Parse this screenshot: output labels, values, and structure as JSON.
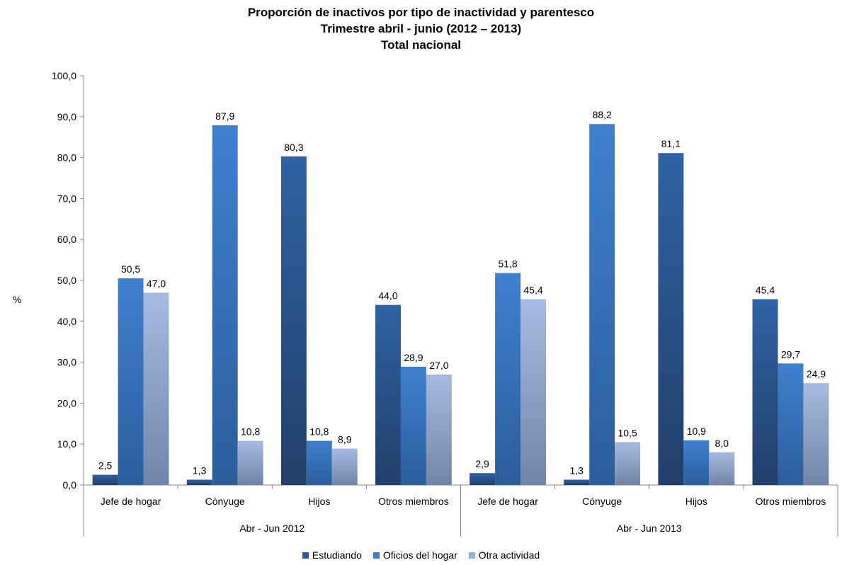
{
  "chart_data": {
    "type": "bar",
    "title_lines": [
      "Proporción de inactivos por tipo de inactividad y parentesco",
      "Trimestre abril - junio (2012 – 2013)",
      "Total nacional"
    ],
    "ylabel": "%",
    "ylim": [
      0,
      100
    ],
    "yticks": [
      "0,0",
      "10,0",
      "20,0",
      "30,0",
      "40,0",
      "50,0",
      "60,0",
      "70,0",
      "80,0",
      "90,0",
      "100,0"
    ],
    "groups": [
      {
        "label": "Abr - Jun 2012",
        "categories": [
          "Jefe de hogar",
          "Cónyuge",
          "Hijos",
          "Otros miembros"
        ]
      },
      {
        "label": "Abr - Jun 2013",
        "categories": [
          "Jefe de hogar",
          "Cónyuge",
          "Hijos",
          "Otros miembros"
        ]
      }
    ],
    "series": [
      {
        "name": "Estudiando",
        "color": "#2d5a94",
        "values": [
          2.5,
          1.3,
          80.3,
          44.0,
          2.9,
          1.3,
          81.1,
          45.4
        ],
        "labels": [
          "2,5",
          "1,3",
          "80,3",
          "44,0",
          "2,9",
          "1,3",
          "81,1",
          "45,4"
        ]
      },
      {
        "name": "Oficios del hogar",
        "color": "#3d7cc9",
        "values": [
          50.5,
          87.9,
          10.8,
          28.9,
          51.8,
          88.2,
          10.9,
          29.7
        ],
        "labels": [
          "50,5",
          "87,9",
          "10,8",
          "28,9",
          "51,8",
          "88,2",
          "10,9",
          "29,7"
        ]
      },
      {
        "name": "Otra actividad",
        "color": "#98aed6",
        "values": [
          47.0,
          10.8,
          8.9,
          27.0,
          45.4,
          10.5,
          8.0,
          24.9
        ],
        "labels": [
          "47,0",
          "10,8",
          "8,9",
          "27,0",
          "45,4",
          "10,5",
          "8,0",
          "24,9"
        ]
      }
    ],
    "legend_position": "bottom",
    "grid": false
  }
}
